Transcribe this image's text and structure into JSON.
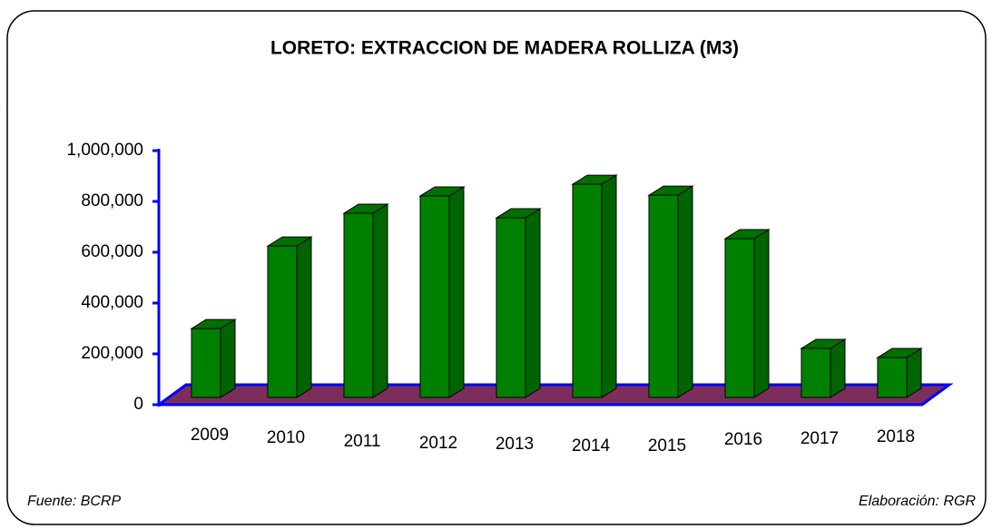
{
  "chart_data": {
    "type": "bar3d",
    "title": "LORETO: EXTRACCION DE MADERA ROLLIZA (M3)",
    "categories": [
      "2009",
      "2010",
      "2011",
      "2012",
      "2013",
      "2014",
      "2015",
      "2016",
      "2017",
      "2018"
    ],
    "values": [
      271000,
      596000,
      725000,
      793000,
      707000,
      839000,
      796000,
      625000,
      193000,
      157000
    ],
    "color": "#008000",
    "ylim": [
      0,
      1000000
    ],
    "yticks": [
      0,
      {
        "value": 200000,
        "label": "200,000"
      },
      {
        "value": 400000,
        "label": "400,000"
      },
      {
        "value": 600000,
        "label": "600,000"
      },
      {
        "value": 800000,
        "label": "800,000"
      },
      {
        "value": 1000000,
        "label": "1,000,000"
      }
    ],
    "source": "Fuente: BCRP",
    "credit": "Elaboración: RGR"
  }
}
